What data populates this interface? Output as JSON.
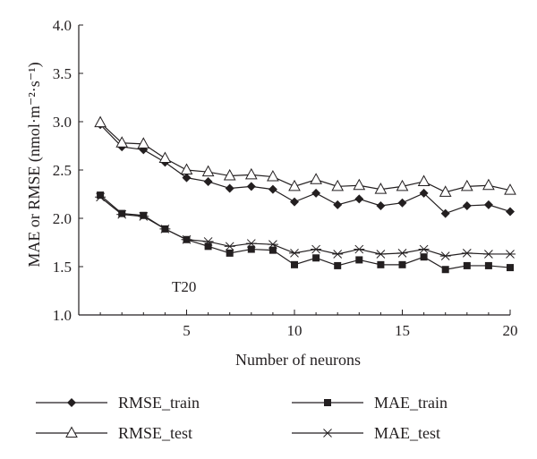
{
  "chart_data": {
    "type": "line",
    "xlabel": "Number of neurons",
    "ylabel": "MAE or RMSE (nmol·m⁻²·s⁻¹)",
    "xlim": [
      0,
      20
    ],
    "ylim": [
      1.0,
      4.0
    ],
    "x_ticks": [
      "5",
      "10",
      "15",
      "20"
    ],
    "y_ticks": [
      "1.0",
      "1.5",
      "2.0",
      "2.5",
      "3.0",
      "3.5",
      "4.0"
    ],
    "grid": false,
    "legend_position": "bottom",
    "annotation": "T20",
    "x": [
      1,
      2,
      3,
      4,
      5,
      6,
      7,
      8,
      9,
      10,
      11,
      12,
      13,
      14,
      15,
      16,
      17,
      18,
      19,
      20
    ],
    "series": [
      {
        "name": "RMSE_train",
        "marker": "diamond-filled",
        "values": [
          2.97,
          2.74,
          2.71,
          2.58,
          2.42,
          2.38,
          2.31,
          2.33,
          2.3,
          2.17,
          2.26,
          2.14,
          2.2,
          2.13,
          2.16,
          2.26,
          2.05,
          2.13,
          2.14,
          2.07
        ]
      },
      {
        "name": "RMSE_test",
        "marker": "triangle-open",
        "values": [
          2.99,
          2.78,
          2.77,
          2.62,
          2.5,
          2.48,
          2.44,
          2.45,
          2.43,
          2.33,
          2.4,
          2.33,
          2.34,
          2.3,
          2.33,
          2.38,
          2.27,
          2.33,
          2.34,
          2.29
        ]
      },
      {
        "name": "MAE_train",
        "marker": "square-filled",
        "values": [
          2.24,
          2.05,
          2.03,
          1.89,
          1.78,
          1.71,
          1.64,
          1.68,
          1.67,
          1.52,
          1.59,
          1.51,
          1.57,
          1.52,
          1.52,
          1.6,
          1.47,
          1.51,
          1.51,
          1.49
        ]
      },
      {
        "name": "MAE_test",
        "marker": "asterisk",
        "values": [
          2.22,
          2.04,
          2.02,
          1.89,
          1.78,
          1.76,
          1.71,
          1.74,
          1.73,
          1.64,
          1.68,
          1.63,
          1.68,
          1.63,
          1.64,
          1.68,
          1.61,
          1.64,
          1.63,
          1.63
        ]
      }
    ]
  }
}
